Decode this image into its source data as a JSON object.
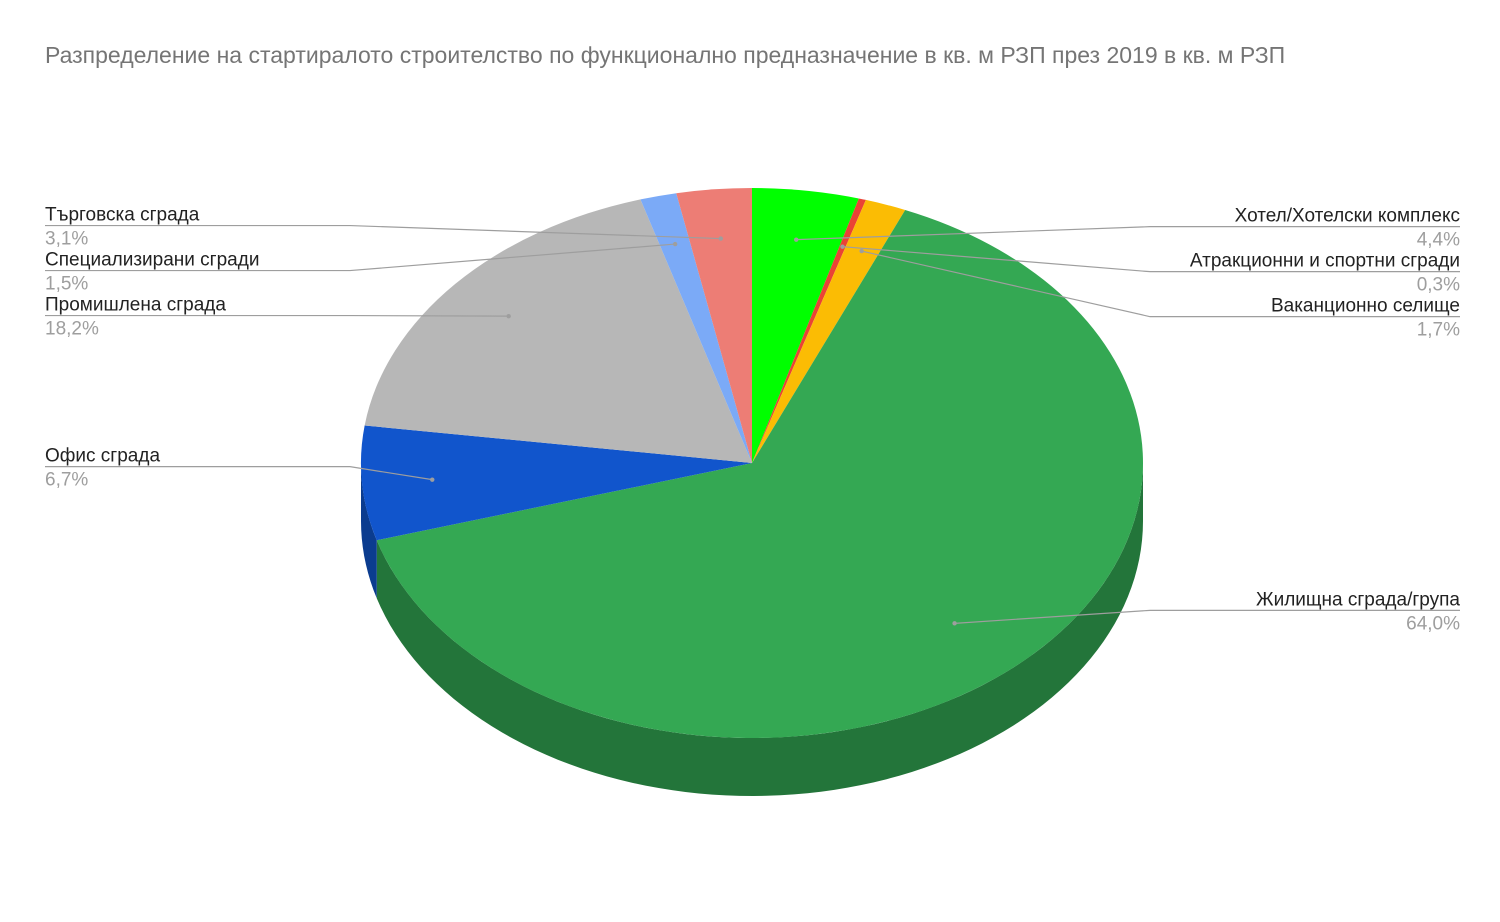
{
  "chart_data": {
    "type": "pie",
    "style": "3d",
    "title": "Разпределение на стартиралото строителство по функционално предназначение в кв. м РЗП през 2019 в кв. м РЗП",
    "legend": "none",
    "slices": [
      {
        "name": "Хотел/Хотелски комплекс",
        "value": 4.4,
        "label": "4,4%",
        "color": "#00ff00",
        "side_color": "#00b000"
      },
      {
        "name": "Атракционни и спортни сгради",
        "value": 0.3,
        "label": "0,3%",
        "color": "#ea4335",
        "side_color": "#a52e25"
      },
      {
        "name": "Ваканционно селище",
        "value": 1.7,
        "label": "1,7%",
        "color": "#fbbc04",
        "side_color": "#b18400"
      },
      {
        "name": "Жилищна сграда/група",
        "value": 64.0,
        "label": "64,0%",
        "color": "#34a853",
        "side_color": "#23753a"
      },
      {
        "name": "Офис сграда",
        "value": 6.7,
        "label": "6,7%",
        "color": "#1155cc",
        "side_color": "#0b3c8f"
      },
      {
        "name": "Промишлена сграда",
        "value": 18.2,
        "label": "18,2%",
        "color": "#b7b7b7",
        "side_color": "#808080"
      },
      {
        "name": "Специализирани сгради",
        "value": 1.5,
        "label": "1,5%",
        "color": "#7baaf7",
        "side_color": "#5677ad"
      },
      {
        "name": "Търговска сграда",
        "value": 3.1,
        "label": "3,1%",
        "color": "#ed7d75",
        "side_color": "#a65852"
      }
    ]
  }
}
